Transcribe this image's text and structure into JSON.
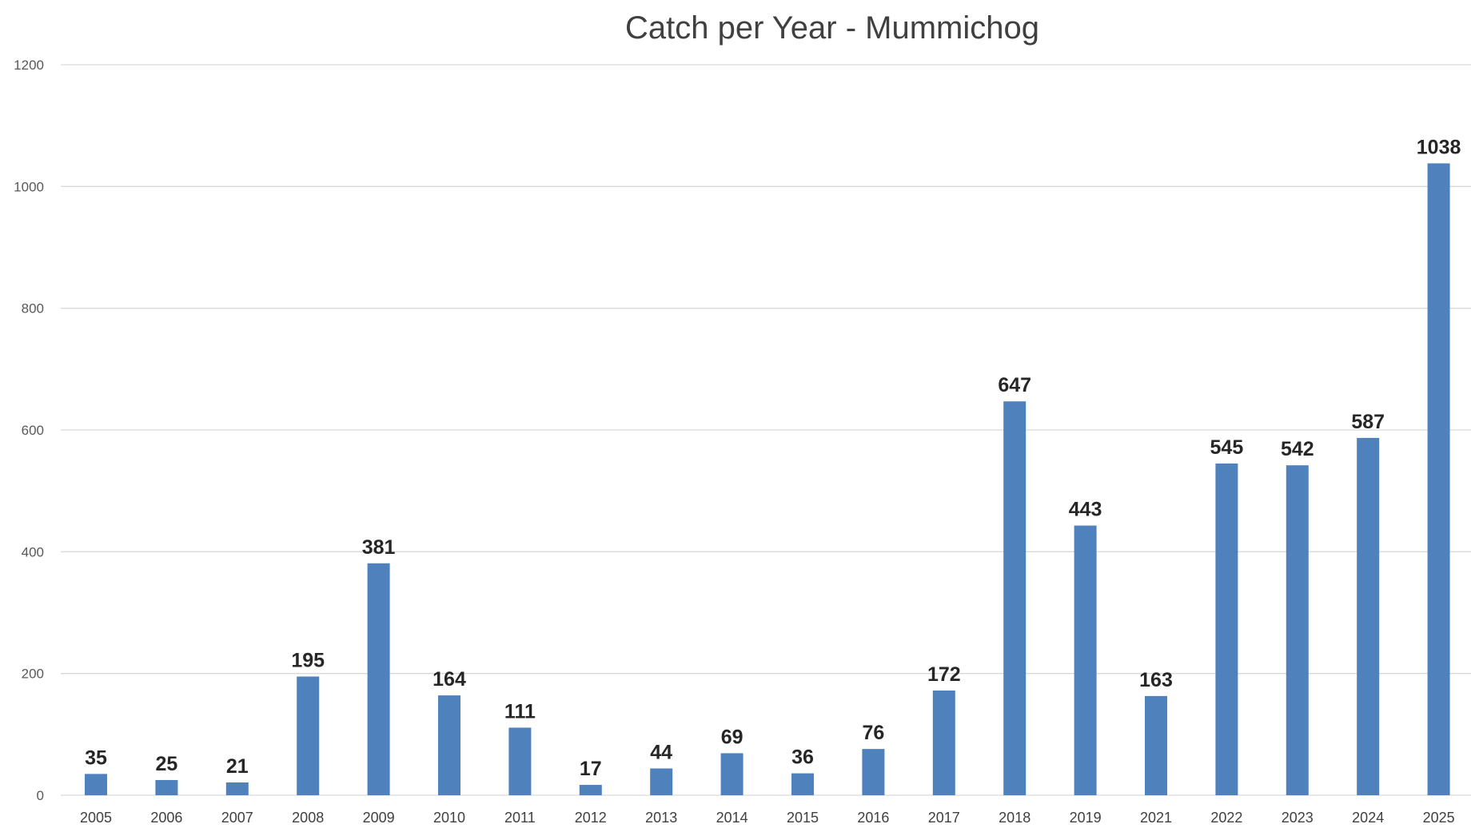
{
  "chart_data": {
    "type": "bar",
    "title": "Catch per Year - Mummichog",
    "xlabel": "",
    "ylabel": "",
    "ylim": [
      0,
      1200
    ],
    "yticks": [
      0,
      200,
      400,
      600,
      800,
      1000,
      1200
    ],
    "grid": true,
    "legend": "none",
    "bar_color": "#4f81bd",
    "categories": [
      "2005",
      "2006",
      "2007",
      "2008",
      "2009",
      "2010",
      "2011",
      "2012",
      "2013",
      "2014",
      "2015",
      "2016",
      "2017",
      "2018",
      "2019",
      "2021",
      "2022",
      "2023",
      "2024",
      "2025"
    ],
    "values": [
      35,
      25,
      21,
      195,
      381,
      164,
      111,
      17,
      44,
      69,
      36,
      76,
      172,
      647,
      443,
      163,
      545,
      542,
      587,
      1038
    ],
    "data_labels": true
  }
}
